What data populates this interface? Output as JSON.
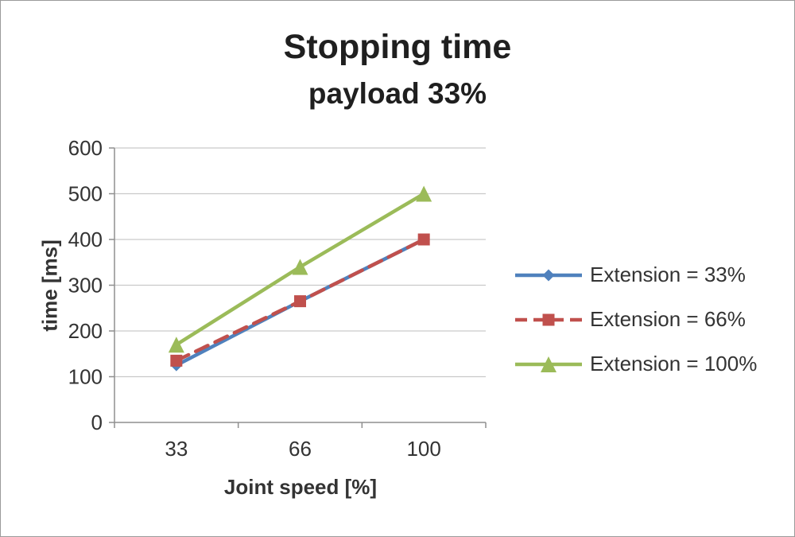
{
  "title": {
    "line1": "Stopping time",
    "line2": "payload 33%"
  },
  "chart_data": {
    "type": "line",
    "categories": [
      33,
      66,
      100
    ],
    "series": [
      {
        "name": "Extension = 33%",
        "values": [
          125,
          265,
          400
        ],
        "color": "#4F81BD",
        "marker": "diamond",
        "dash": "solid"
      },
      {
        "name": "Extension = 66%",
        "values": [
          135,
          265,
          400
        ],
        "color": "#C0504D",
        "marker": "square",
        "dash": "dashed"
      },
      {
        "name": "Extension = 100%",
        "values": [
          170,
          340,
          500
        ],
        "color": "#9BBB59",
        "marker": "triangle",
        "dash": "solid"
      }
    ],
    "xlabel": "Joint speed [%]",
    "ylabel": "time [ms]",
    "ylim": [
      0,
      600
    ],
    "ytick_step": 100,
    "grid": true,
    "legend_position": "right"
  }
}
